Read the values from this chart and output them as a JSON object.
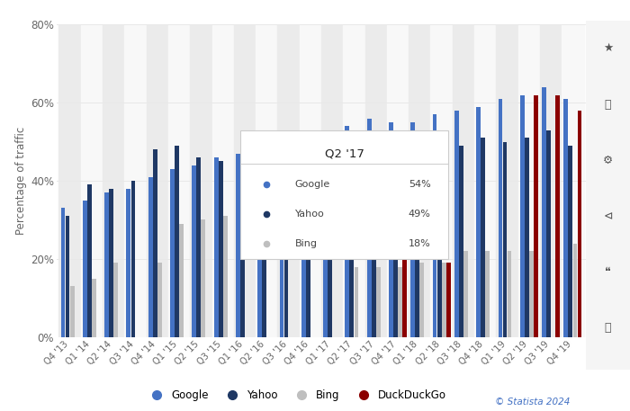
{
  "quarters": [
    "Q4 '13",
    "Q1 '14",
    "Q2 '14",
    "Q3 '14",
    "Q4 '14",
    "Q1 '15",
    "Q2 '15",
    "Q3 '15",
    "Q1 '16",
    "Q2 '16",
    "Q3 '16",
    "Q4 '16",
    "Q1 '17",
    "Q2 '17",
    "Q3 '17",
    "Q4 '17",
    "Q1 '18",
    "Q2 '18",
    "Q3 '18",
    "Q4 '18",
    "Q1 '19",
    "Q2 '19",
    "Q3 '19",
    "Q4 '19"
  ],
  "google": [
    33,
    35,
    37,
    38,
    41,
    43,
    44,
    46,
    47,
    49,
    50,
    52,
    53,
    54,
    56,
    55,
    55,
    57,
    58,
    59,
    61,
    62,
    64,
    61
  ],
  "yahoo": [
    31,
    39,
    38,
    40,
    48,
    49,
    46,
    45,
    44,
    45,
    46,
    47,
    48,
    49,
    48,
    46,
    42,
    46,
    49,
    51,
    50,
    51,
    53,
    49
  ],
  "bing": [
    13,
    15,
    19,
    0,
    19,
    29,
    30,
    31,
    0,
    0,
    0,
    0,
    0,
    18,
    18,
    18,
    19,
    19,
    22,
    22,
    22,
    22,
    0,
    24
  ],
  "duckduckgo": [
    0,
    0,
    0,
    0,
    0,
    0,
    0,
    0,
    0,
    0,
    0,
    0,
    0,
    0,
    0,
    46,
    0,
    19,
    0,
    0,
    0,
    62,
    62,
    58
  ],
  "google_color": "#4472C4",
  "yahoo_color": "#1F3864",
  "bing_color": "#BFBFBF",
  "duckduckgo_color": "#8B0000",
  "bg_color": "#FFFFFF",
  "panel_bg": "#F5F5F5",
  "grid_color": "#E8E8E8",
  "ylabel": "Percentage of traffic",
  "ylim": [
    0,
    80
  ],
  "yticks": [
    0,
    20,
    40,
    60,
    80
  ],
  "ytick_labels": [
    "0%",
    "20%",
    "40%",
    "60%",
    "80%"
  ],
  "tooltip_title": "Q2 '17",
  "tooltip_entries": [
    [
      "Google",
      "54%"
    ],
    [
      "Yahoo",
      "49%"
    ],
    [
      "Bing",
      "18%"
    ]
  ],
  "statista_text": "© Statista 2024",
  "copyright_color": "#4472C4"
}
